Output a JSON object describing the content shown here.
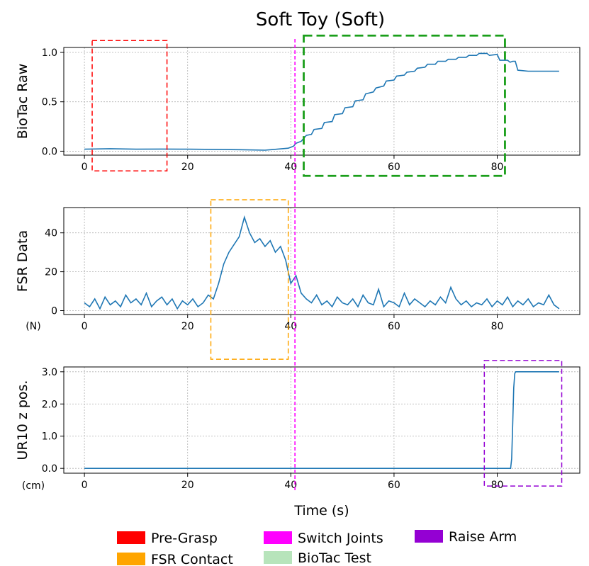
{
  "chart_data": {
    "type": "line",
    "title": "Soft Toy (Soft)",
    "xlabel": "Time (s)",
    "xlim": [
      -4,
      96
    ],
    "xticks": [
      0,
      20,
      40,
      60,
      80
    ],
    "panels": [
      {
        "id": "biotac",
        "ylabel": "BioTac Raw",
        "unit": "",
        "ylim": [
          -0.04,
          1.05
        ],
        "yticks": [
          0.0,
          0.5,
          1.0
        ],
        "ytick_labels": [
          "0.0",
          "0.5",
          "1.0"
        ],
        "xtick_labels": [
          "0",
          "20",
          "40",
          "60",
          "80"
        ],
        "series": {
          "x": [
            0,
            5,
            10,
            15,
            20,
            25,
            30,
            35,
            39.5,
            40.5,
            41,
            41.5,
            42,
            42.5,
            43,
            44,
            44.5,
            46,
            46.5,
            48,
            48.5,
            50,
            50.5,
            52,
            52.5,
            54,
            54.5,
            56,
            56.5,
            58,
            58.5,
            60,
            60.5,
            62,
            62.5,
            64,
            64.5,
            66,
            66.5,
            68,
            68.5,
            70,
            70.5,
            72,
            72.5,
            74,
            74.5,
            76,
            76.5,
            78,
            78.5,
            80,
            80.5,
            82,
            82.5,
            83,
            83.5,
            84,
            86,
            88,
            90,
            92
          ],
          "y": [
            0.02,
            0.025,
            0.02,
            0.022,
            0.02,
            0.018,
            0.015,
            0.01,
            0.03,
            0.05,
            0.08,
            0.09,
            0.1,
            0.13,
            0.16,
            0.17,
            0.22,
            0.23,
            0.29,
            0.3,
            0.37,
            0.38,
            0.44,
            0.45,
            0.51,
            0.52,
            0.58,
            0.6,
            0.64,
            0.66,
            0.71,
            0.72,
            0.76,
            0.77,
            0.8,
            0.81,
            0.84,
            0.85,
            0.88,
            0.88,
            0.91,
            0.91,
            0.93,
            0.93,
            0.95,
            0.95,
            0.97,
            0.97,
            0.99,
            0.99,
            0.97,
            0.98,
            0.92,
            0.92,
            0.9,
            0.91,
            0.91,
            0.82,
            0.81,
            0.81,
            0.81,
            0.81
          ]
        },
        "highlights": [
          {
            "label": "Pre-Grasp",
            "color": "#ff0000",
            "x": [
              1.5,
              16
            ],
            "y": [
              -0.2,
              1.12
            ],
            "width": 1.5
          },
          {
            "label": "BioTac Test",
            "color": "#1a9e1a",
            "x": [
              42.5,
              81.5
            ],
            "y": [
              -0.25,
              1.17
            ],
            "width": 2.8
          }
        ]
      },
      {
        "id": "fsr",
        "ylabel": "FSR Data",
        "unit": "(N)",
        "ylim": [
          -2,
          53
        ],
        "yticks": [
          0,
          20,
          40
        ],
        "ytick_labels": [
          "0",
          "20",
          "40"
        ],
        "xtick_labels": [
          "0",
          "20",
          "40",
          "60",
          "80"
        ],
        "series": {
          "x": [
            0,
            1,
            2,
            3,
            4,
            5,
            6,
            7,
            8,
            9,
            10,
            11,
            12,
            13,
            14,
            15,
            16,
            17,
            18,
            19,
            20,
            21,
            22,
            23,
            24,
            25,
            26,
            27,
            28,
            29,
            30,
            31,
            32,
            33,
            34,
            35,
            36,
            37,
            38,
            39,
            40,
            41,
            42,
            43,
            44,
            45,
            46,
            47,
            48,
            49,
            50,
            51,
            52,
            53,
            54,
            55,
            56,
            57,
            58,
            59,
            60,
            61,
            62,
            63,
            64,
            65,
            66,
            67,
            68,
            69,
            70,
            71,
            72,
            73,
            74,
            75,
            76,
            77,
            78,
            79,
            80,
            81,
            82,
            83,
            84,
            85,
            86,
            87,
            88,
            89,
            90,
            91,
            92
          ],
          "y": [
            4,
            2,
            6,
            1,
            7,
            3,
            5,
            2,
            8,
            4,
            6,
            3,
            9,
            2,
            5,
            7,
            3,
            6,
            1,
            5,
            3,
            6,
            2,
            4,
            8,
            6,
            14,
            24,
            30,
            34,
            38,
            48,
            40,
            35,
            37,
            33,
            36,
            30,
            33,
            26,
            14,
            18,
            9,
            6,
            4,
            8,
            3,
            5,
            2,
            7,
            4,
            3,
            6,
            2,
            8,
            4,
            3,
            11,
            2,
            5,
            4,
            2,
            9,
            3,
            6,
            4,
            2,
            5,
            3,
            7,
            4,
            12,
            6,
            3,
            5,
            2,
            4,
            3,
            6,
            2,
            5,
            3,
            7,
            2,
            5,
            3,
            6,
            2,
            4,
            3,
            8,
            3,
            1
          ]
        },
        "highlights": [
          {
            "label": "FSR Contact",
            "color": "#ffa500",
            "x": [
              24.5,
              39.5
            ],
            "y": [
              -25,
              57
            ],
            "width": 1.5
          }
        ]
      },
      {
        "id": "ur10",
        "ylabel": "UR10 z pos.",
        "unit": "(cm)",
        "ylim": [
          -0.15,
          3.15
        ],
        "yticks": [
          0.0,
          1.0,
          2.0,
          3.0
        ],
        "ytick_labels": [
          "0.0",
          "1.0",
          "2.0",
          "3.0"
        ],
        "xtick_labels": [
          "0",
          "20",
          "40",
          "60",
          "80"
        ],
        "series": {
          "x": [
            0,
            20,
            40,
            60,
            80,
            82.6,
            82.8,
            83.0,
            83.2,
            83.4,
            83.6,
            84,
            86,
            88,
            90,
            92
          ],
          "y": [
            0,
            0,
            0,
            0,
            0,
            0,
            0.3,
            1.4,
            2.5,
            2.95,
            3.0,
            3.0,
            3.0,
            3.0,
            3.0,
            3.0
          ]
        },
        "highlights": [
          {
            "label": "Raise Arm",
            "color": "#9400d3",
            "x": [
              77.5,
              92.5
            ],
            "y": [
              -0.55,
              3.35
            ],
            "width": 1.5
          }
        ]
      }
    ],
    "switch_line": {
      "label": "Switch Joints",
      "color": "#ff00ff",
      "x": 40.8
    },
    "legend": {
      "placement": "bottom-center",
      "entries": [
        {
          "label": "Pre-Grasp",
          "color": "#ff0000"
        },
        {
          "label": "Switch Joints",
          "color": "#ff00ff"
        },
        {
          "label": "Raise Arm",
          "color": "#9400d3"
        },
        {
          "label": "FSR Contact",
          "color": "#ffa500"
        },
        {
          "label": "BioTac Test",
          "color": "#b7e4bb"
        }
      ]
    },
    "grid": true
  }
}
